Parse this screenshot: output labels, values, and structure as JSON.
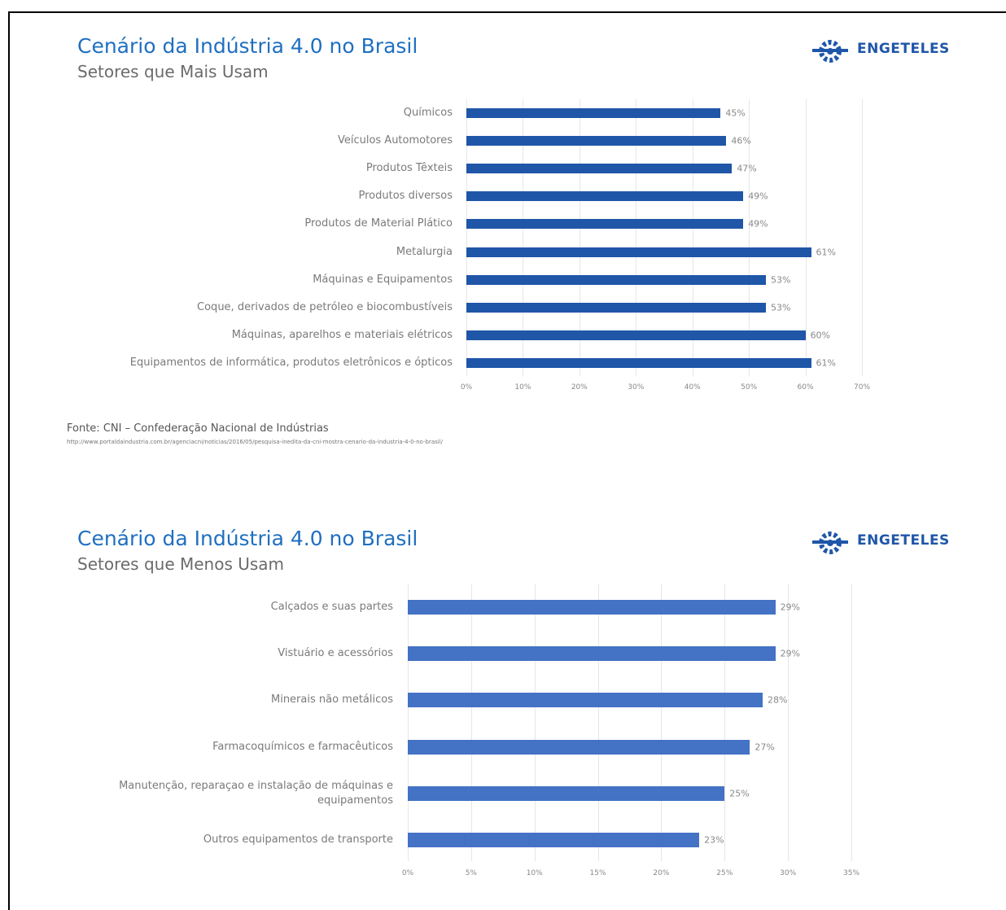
{
  "logo": "ENGETELES",
  "source": "Fonte: CNI – Confederação Nacional de Indústrias",
  "url": "http://www.portaldaindustria.com.br/agenciacni/noticias/2016/05/pesquisa-inedita-da-cni-mostra-cenario-da-industria-4-0-no-brasil/",
  "chart_data": [
    {
      "type": "bar",
      "orientation": "horizontal",
      "title": "Cenário da Indústria 4.0 no Brasil",
      "subtitle": "Setores que Mais Usam",
      "categories": [
        "Químicos",
        "Veículos Automotores",
        "Produtos Têxteis",
        "Produtos diversos",
        "Produtos de Material Plático",
        "Metalurgia",
        "Máquinas e Equipamentos",
        "Coque, derivados de petróleo e biocombustíveis",
        "Máquinas, aparelhos e materiais elétricos",
        "Equipamentos de informática, produtos eletrônicos e ópticos"
      ],
      "values": [
        45,
        46,
        47,
        49,
        49,
        61,
        53,
        53,
        60,
        61
      ],
      "value_labels": [
        "45%",
        "46%",
        "47%",
        "49%",
        "49%",
        "61%",
        "53%",
        "53%",
        "60%",
        "61%"
      ],
      "color": "#1f56a8",
      "xlim": [
        0,
        70
      ],
      "xticks": [
        {
          "value": 0,
          "label": "0%"
        },
        {
          "value": 10,
          "label": "10%"
        },
        {
          "value": 20,
          "label": "20%"
        },
        {
          "value": 30,
          "label": "30%"
        },
        {
          "value": 40,
          "label": "40%"
        },
        {
          "value": 50,
          "label": "50%"
        },
        {
          "value": 60,
          "label": "60%"
        },
        {
          "value": 70,
          "label": "70%"
        }
      ],
      "grid": true
    },
    {
      "type": "bar",
      "orientation": "horizontal",
      "title": "Cenário da Indústria 4.0 no Brasil",
      "subtitle": "Setores que Menos Usam",
      "categories": [
        "Calçados e suas partes",
        "Vistuário e acessórios",
        "Minerais não metálicos",
        "Farmacoquímicos e farmacêuticos",
        "Manutenção, reparaçao e instalação de máquinas e equipamentos",
        "Outros equipamentos de transporte"
      ],
      "values": [
        29,
        29,
        28,
        27,
        25,
        23
      ],
      "value_labels": [
        "29%",
        "29%",
        "28%",
        "27%",
        "25%",
        "23%"
      ],
      "color": "#4472c4",
      "xlim": [
        0,
        35
      ],
      "xticks": [
        {
          "value": 0,
          "label": "0%"
        },
        {
          "value": 5,
          "label": "5%"
        },
        {
          "value": 10,
          "label": "10%"
        },
        {
          "value": 15,
          "label": "15%"
        },
        {
          "value": 20,
          "label": "20%"
        },
        {
          "value": 25,
          "label": "25%"
        },
        {
          "value": 30,
          "label": "30%"
        },
        {
          "value": 35,
          "label": "35%"
        }
      ],
      "grid": true
    }
  ]
}
